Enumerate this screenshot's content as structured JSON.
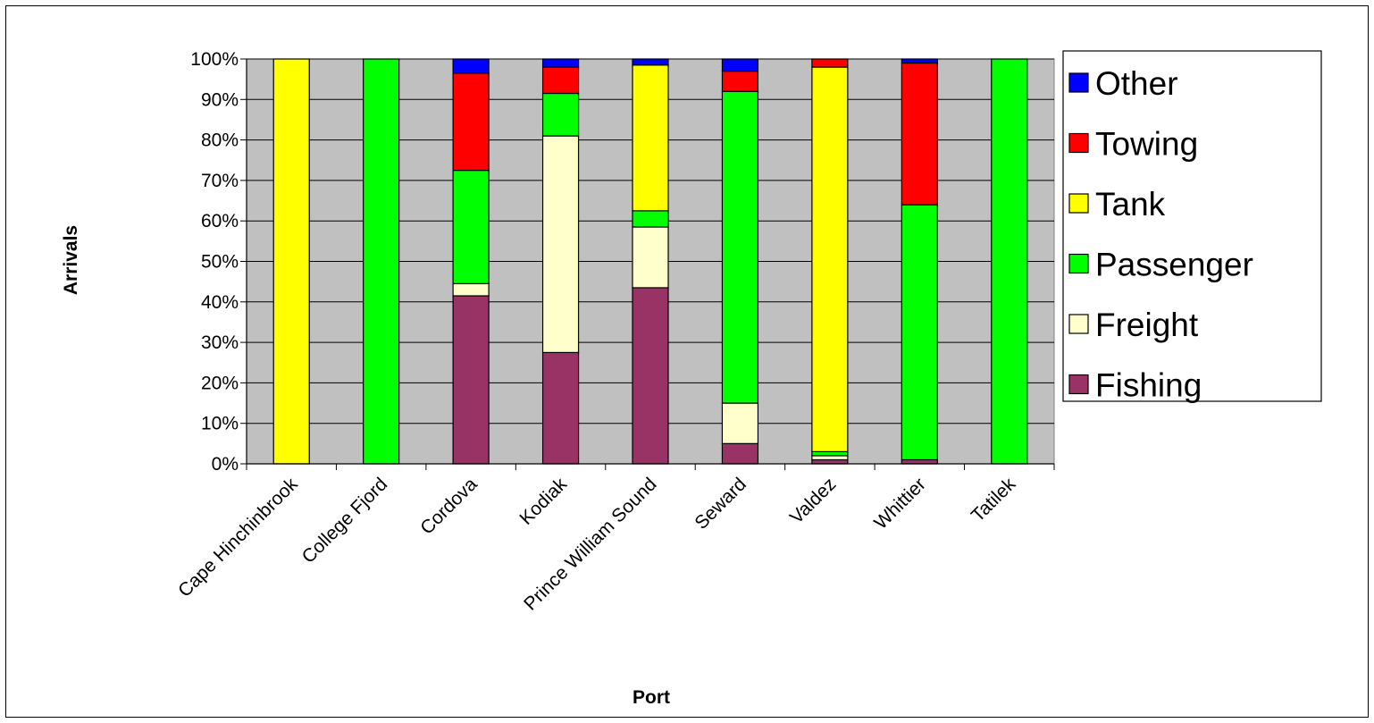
{
  "chart_data": {
    "type": "bar",
    "stacked": true,
    "percent": true,
    "title": "",
    "xlabel": "Port",
    "ylabel": "Arrivals",
    "ylim": [
      0,
      100
    ],
    "yticks": [
      "0%",
      "10%",
      "20%",
      "30%",
      "40%",
      "50%",
      "60%",
      "70%",
      "80%",
      "90%",
      "100%"
    ],
    "grid": "horizontal",
    "plot_background": "#c0c0c0",
    "legend_position": "right",
    "categories": [
      "Cape Hinchinbrook",
      "College Fjord",
      "Cordova",
      "Kodiak",
      "Prince William Sound",
      "Seward",
      "Valdez",
      "Whittier",
      "Tatilek"
    ],
    "series": [
      {
        "name": "Fishing",
        "color": "#993366",
        "values": [
          0,
          0,
          41.5,
          27.5,
          43.5,
          5,
          1,
          1,
          0
        ]
      },
      {
        "name": "Freight",
        "color": "#ffffcc",
        "values": [
          0,
          0,
          3,
          53.5,
          15,
          10,
          1,
          0,
          0
        ]
      },
      {
        "name": "Passenger",
        "color": "#00ff00",
        "values": [
          0,
          100,
          28,
          10.5,
          4,
          77,
          1,
          63,
          100
        ]
      },
      {
        "name": "Tank",
        "color": "#ffff00",
        "values": [
          100,
          0,
          0,
          0,
          36,
          0,
          95,
          0,
          0
        ]
      },
      {
        "name": "Towing",
        "color": "#ff0000",
        "values": [
          0,
          0,
          24,
          6.5,
          0,
          5,
          2,
          35,
          0
        ]
      },
      {
        "name": "Other",
        "color": "#0000ff",
        "values": [
          0,
          0,
          3.5,
          2,
          1.5,
          3,
          0,
          1,
          0
        ]
      }
    ],
    "legend_order": [
      "Other",
      "Towing",
      "Tank",
      "Passenger",
      "Freight",
      "Fishing"
    ]
  }
}
